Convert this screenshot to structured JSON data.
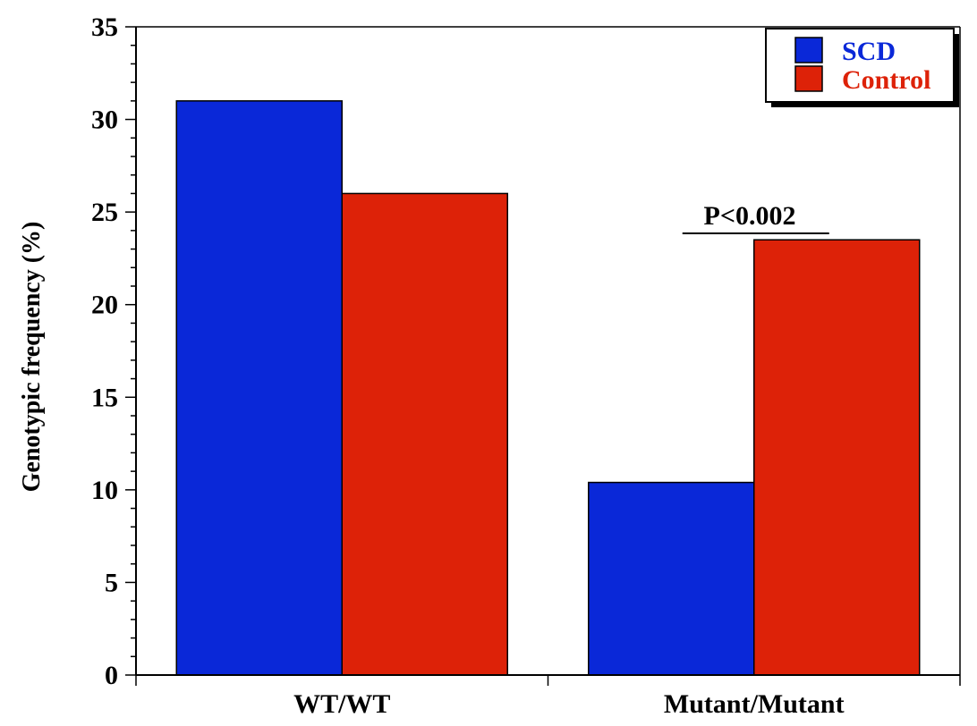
{
  "chart_data": {
    "type": "bar",
    "title": "",
    "xlabel": "",
    "ylabel": "Genotypic frequency (%)",
    "ylim": [
      0,
      35
    ],
    "yticks": [
      0,
      5,
      10,
      15,
      20,
      25,
      30,
      35
    ],
    "categories": [
      "WT/WT",
      "Mutant/Mutant"
    ],
    "series": [
      {
        "name": "SCD",
        "values": [
          31,
          10.4
        ],
        "color": "#0a28d8"
      },
      {
        "name": "Control",
        "values": [
          26,
          23.5
        ],
        "color": "#dd2208"
      }
    ],
    "grid": false,
    "legend_position": "top-right",
    "annotations": [
      {
        "text": "P<0.002",
        "category": "Mutant/Mutant"
      }
    ]
  }
}
